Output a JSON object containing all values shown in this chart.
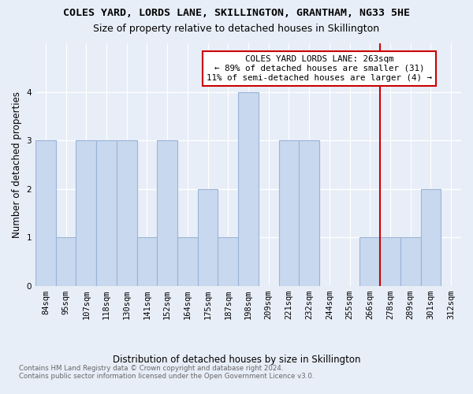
{
  "title_line1": "COLES YARD, LORDS LANE, SKILLINGTON, GRANTHAM, NG33 5HE",
  "title_line2": "Size of property relative to detached houses in Skillington",
  "xlabel": "Distribution of detached houses by size in Skillington",
  "ylabel": "Number of detached properties",
  "categories": [
    "84sqm",
    "95sqm",
    "107sqm",
    "118sqm",
    "130sqm",
    "141sqm",
    "152sqm",
    "164sqm",
    "175sqm",
    "187sqm",
    "198sqm",
    "209sqm",
    "221sqm",
    "232sqm",
    "244sqm",
    "255sqm",
    "266sqm",
    "278sqm",
    "289sqm",
    "301sqm",
    "312sqm"
  ],
  "values": [
    3,
    1,
    3,
    3,
    3,
    1,
    3,
    1,
    2,
    1,
    4,
    0,
    3,
    3,
    0,
    0,
    1,
    1,
    1,
    2,
    0
  ],
  "bar_color": "#c8d8ee",
  "bar_edgecolor": "#9ab4d8",
  "bar_linewidth": 0.8,
  "vline_x_index": 16.5,
  "vline_color": "#cc0000",
  "ylim": [
    0,
    5
  ],
  "yticks": [
    0,
    1,
    2,
    3,
    4
  ],
  "annotation_text": "COLES YARD LORDS LANE: 263sqm\n← 89% of detached houses are smaller (31)\n11% of semi-detached houses are larger (4) →",
  "annotation_box_color": "#ffffff",
  "annotation_box_edgecolor": "#cc0000",
  "footer_text": "Contains HM Land Registry data © Crown copyright and database right 2024.\nContains public sector information licensed under the Open Government Licence v3.0.",
  "background_color": "#e8eef8",
  "grid_color": "#ffffff",
  "title1_fontsize": 9.5,
  "title2_fontsize": 9,
  "xlabel_fontsize": 8.5,
  "ylabel_fontsize": 8.5,
  "tick_fontsize": 7.5,
  "annotation_fontsize": 7.8,
  "footer_fontsize": 6.2,
  "footer_color": "#666666"
}
